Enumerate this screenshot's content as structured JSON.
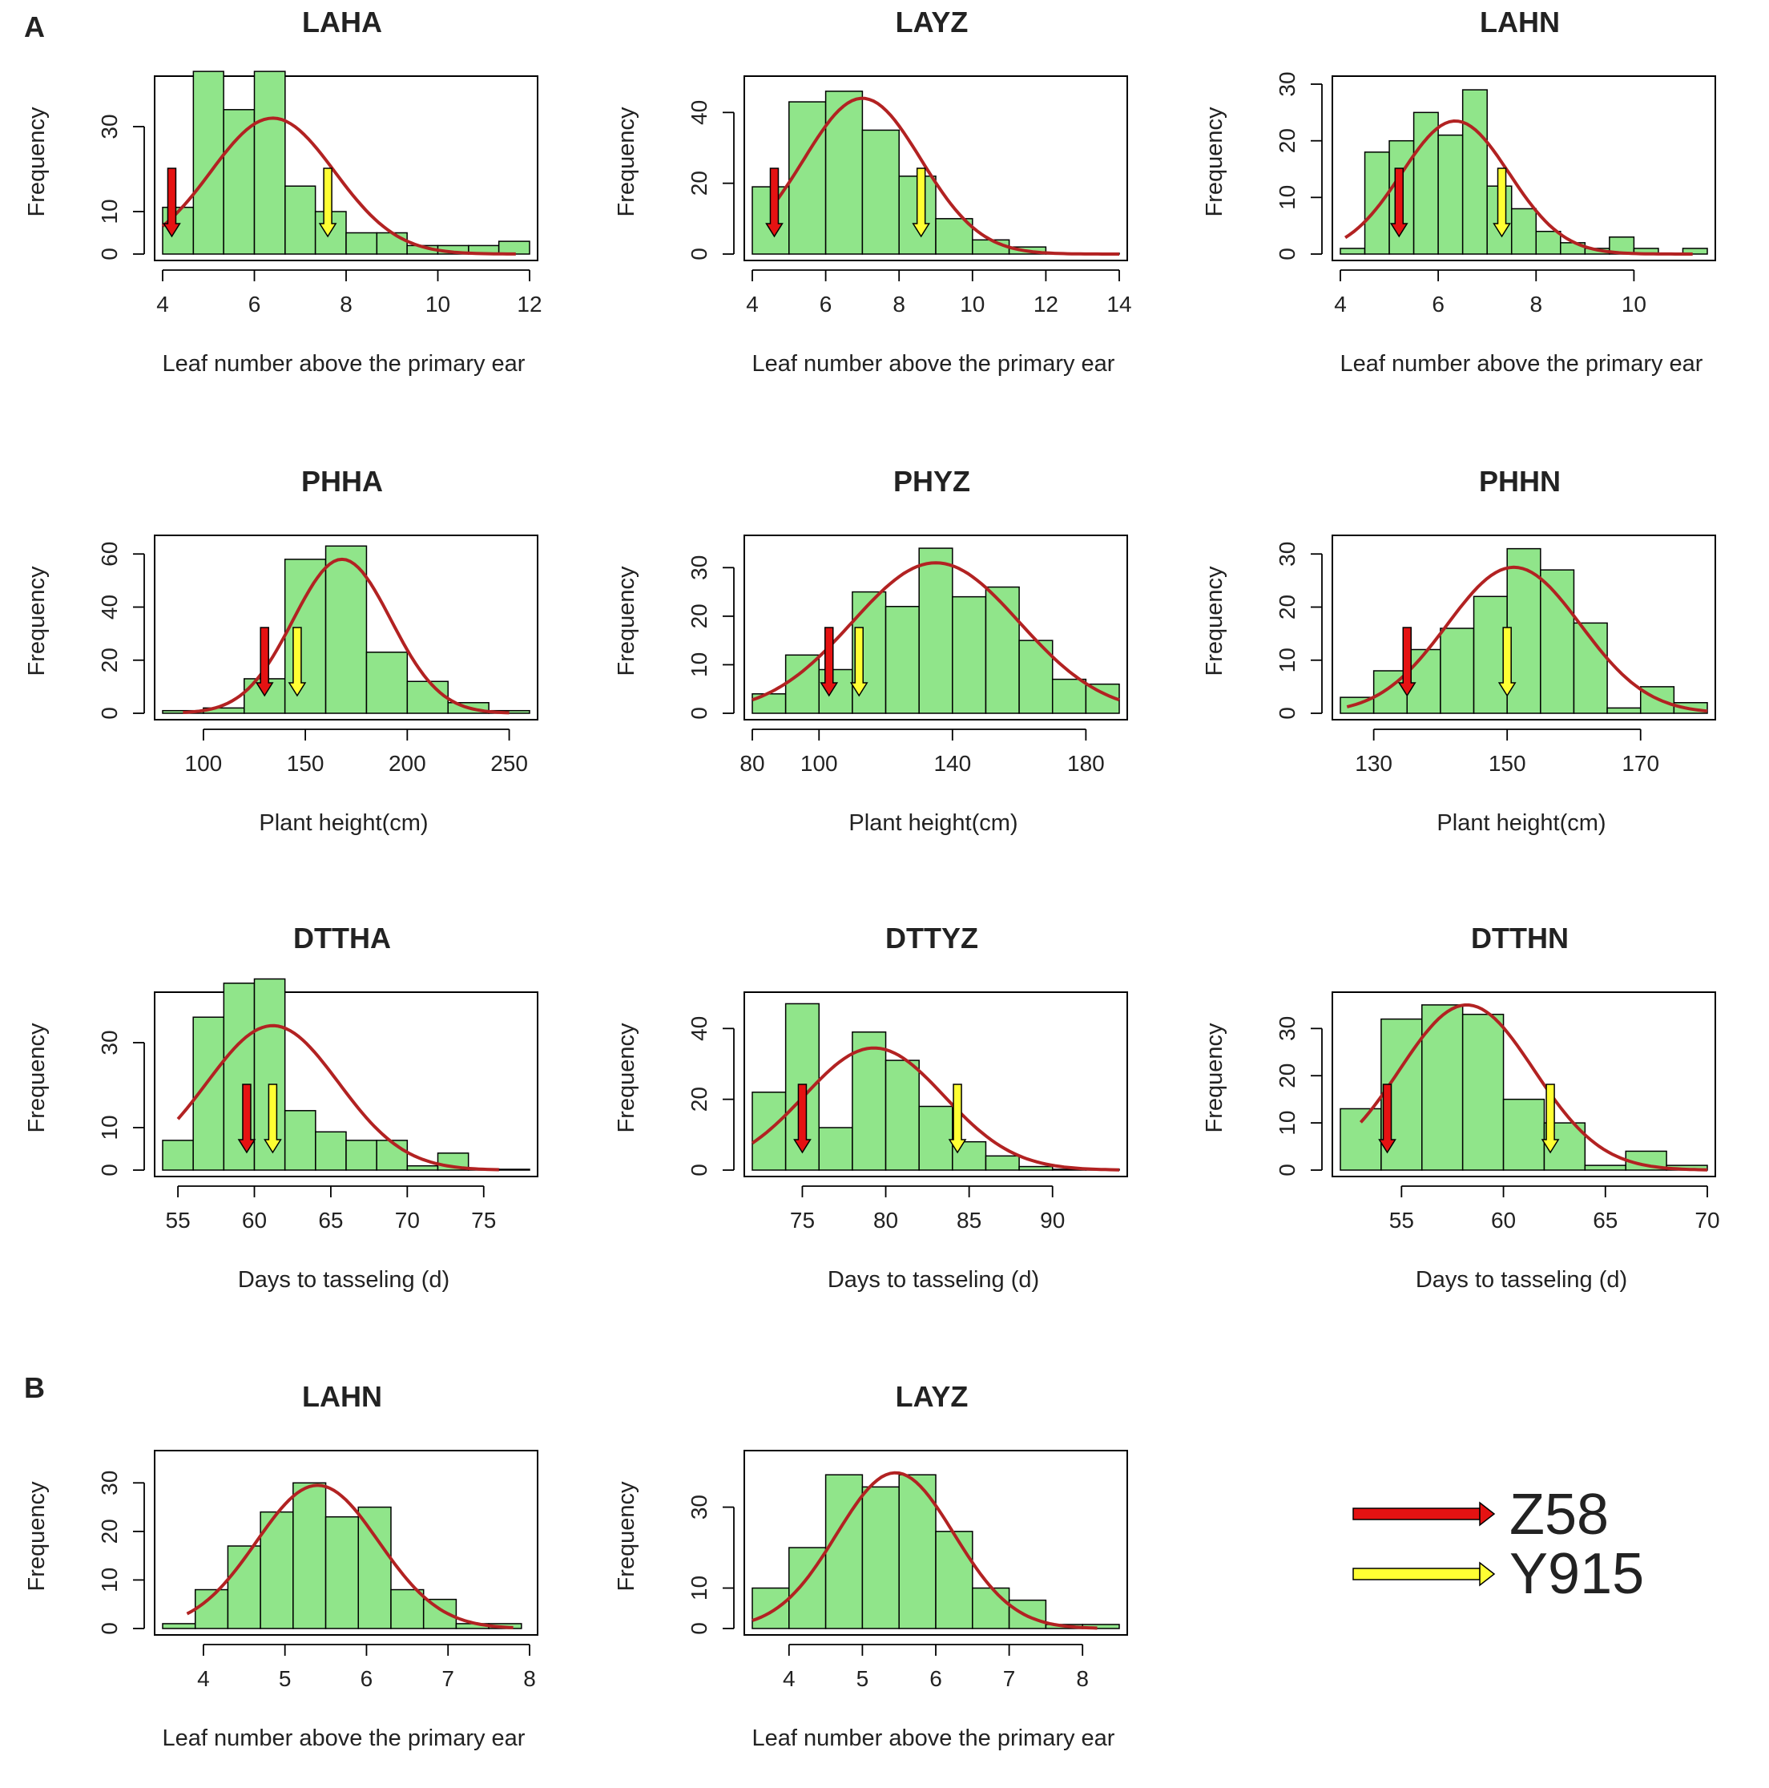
{
  "figure": {
    "panel_labels": [
      "A",
      "B"
    ],
    "y_axis_label": "Frequency",
    "legend": [
      {
        "label": "Z58",
        "color": "#e51212"
      },
      {
        "label": "Y915",
        "color": "#ffff33"
      }
    ],
    "colors": {
      "bar": "#90e58a",
      "bar_border": "#000000",
      "curve": "#b22222"
    }
  },
  "chart_data": [
    {
      "type": "bar",
      "title": "LAHA",
      "xlabel": "Leaf number above the primary ear",
      "ylabel": "Frequency",
      "xlim": [
        4,
        12
      ],
      "ylim": [
        0,
        40
      ],
      "xticks": [
        4,
        6,
        8,
        10,
        12
      ],
      "yticks": [
        0,
        10,
        30
      ],
      "bins": [
        [
          4,
          4.67,
          11
        ],
        [
          4.67,
          5.33,
          43
        ],
        [
          5.33,
          6,
          34
        ],
        [
          6,
          6.67,
          43
        ],
        [
          6.67,
          7.33,
          16
        ],
        [
          7.33,
          8,
          10
        ],
        [
          8,
          8.67,
          5
        ],
        [
          8.67,
          9.33,
          5
        ],
        [
          9.33,
          10,
          2
        ],
        [
          10,
          10.67,
          2
        ],
        [
          10.67,
          11.33,
          2
        ],
        [
          11.33,
          12,
          3
        ]
      ],
      "curve": {
        "mean": 6.4,
        "sd": 1.35,
        "peak": 32,
        "from": 4,
        "to": 11.7
      },
      "markers": {
        "Z58": 4.2,
        "Y915": 7.6
      }
    },
    {
      "type": "bar",
      "title": "LAYZ",
      "xlabel": "Leaf number above the primary ear",
      "ylabel": "Frequency",
      "xlim": [
        4,
        14
      ],
      "ylim": [
        0,
        48
      ],
      "xticks": [
        4,
        6,
        8,
        10,
        12,
        14
      ],
      "yticks": [
        0,
        20,
        40
      ],
      "bins": [
        [
          4,
          5,
          19
        ],
        [
          5,
          6,
          43
        ],
        [
          6,
          7,
          46
        ],
        [
          7,
          8,
          35
        ],
        [
          8,
          9,
          22
        ],
        [
          9,
          10,
          10
        ],
        [
          10,
          11,
          4
        ],
        [
          11,
          12,
          2
        ],
        [
          12,
          13,
          0
        ],
        [
          13,
          14,
          0
        ]
      ],
      "curve": {
        "mean": 7.0,
        "sd": 1.6,
        "peak": 44,
        "from": 4.6,
        "to": 14
      },
      "markers": {
        "Z58": 4.6,
        "Y915": 8.6
      }
    },
    {
      "type": "bar",
      "title": "LAHN",
      "xlabel": "Leaf number above the primary ear",
      "ylabel": "Frequency",
      "xlim": [
        4,
        11.5
      ],
      "ylim": [
        0,
        30
      ],
      "xticks": [
        4,
        6,
        8,
        10
      ],
      "yticks": [
        0,
        10,
        20,
        30
      ],
      "bins": [
        [
          4,
          4.5,
          1
        ],
        [
          4.5,
          5,
          18
        ],
        [
          5,
          5.5,
          20
        ],
        [
          5.5,
          6,
          25
        ],
        [
          6,
          6.5,
          21
        ],
        [
          6.5,
          7,
          29
        ],
        [
          7,
          7.5,
          12
        ],
        [
          7.5,
          8,
          8
        ],
        [
          8,
          8.5,
          4
        ],
        [
          8.5,
          9,
          2
        ],
        [
          9,
          9.5,
          1
        ],
        [
          9.5,
          10,
          3
        ],
        [
          10,
          10.5,
          1
        ],
        [
          10.5,
          11,
          0
        ],
        [
          11,
          11.5,
          1
        ]
      ],
      "curve": {
        "mean": 6.35,
        "sd": 1.1,
        "peak": 23.5,
        "from": 4.1,
        "to": 11.2
      },
      "markers": {
        "Z58": 5.2,
        "Y915": 7.3
      }
    },
    {
      "type": "bar",
      "title": "PHHA",
      "xlabel": "Plant height(cm)",
      "ylabel": "Frequency",
      "xlim": [
        80,
        260
      ],
      "ylim": [
        0,
        64
      ],
      "xticks": [
        100,
        150,
        200,
        250
      ],
      "yticks": [
        0,
        20,
        40,
        60
      ],
      "bins": [
        [
          80,
          100,
          1
        ],
        [
          100,
          120,
          2
        ],
        [
          120,
          140,
          13
        ],
        [
          140,
          160,
          58
        ],
        [
          160,
          180,
          63
        ],
        [
          180,
          200,
          23
        ],
        [
          200,
          220,
          12
        ],
        [
          220,
          240,
          4
        ],
        [
          240,
          260,
          1
        ]
      ],
      "curve": {
        "mean": 168,
        "sd": 24,
        "peak": 58,
        "from": 90,
        "to": 250
      },
      "markers": {
        "Z58": 130,
        "Y915": 146
      }
    },
    {
      "type": "bar",
      "title": "PHYZ",
      "xlabel": "Plant height(cm)",
      "ylabel": "Frequency",
      "xlim": [
        80,
        190
      ],
      "ylim": [
        0,
        35
      ],
      "xticks": [
        80,
        100,
        140,
        180
      ],
      "yticks": [
        0,
        10,
        20,
        30
      ],
      "bins": [
        [
          80,
          90,
          4
        ],
        [
          90,
          100,
          12
        ],
        [
          100,
          110,
          9
        ],
        [
          110,
          120,
          25
        ],
        [
          120,
          130,
          22
        ],
        [
          130,
          140,
          34
        ],
        [
          140,
          150,
          24
        ],
        [
          150,
          160,
          26
        ],
        [
          160,
          170,
          15
        ],
        [
          170,
          180,
          7
        ],
        [
          180,
          190,
          6
        ]
      ],
      "curve": {
        "mean": 135,
        "sd": 25,
        "peak": 31,
        "from": 80,
        "to": 190
      },
      "markers": {
        "Z58": 103,
        "Y915": 112
      }
    },
    {
      "type": "bar",
      "title": "PHHN",
      "xlabel": "Plant height(cm)",
      "ylabel": "Frequency",
      "xlim": [
        125,
        180
      ],
      "ylim": [
        0,
        32
      ],
      "xticks": [
        130,
        150,
        170
      ],
      "yticks": [
        0,
        10,
        20,
        30
      ],
      "bins": [
        [
          125,
          130,
          3
        ],
        [
          130,
          135,
          8
        ],
        [
          135,
          140,
          12
        ],
        [
          140,
          145,
          16
        ],
        [
          145,
          150,
          22
        ],
        [
          150,
          155,
          31
        ],
        [
          155,
          160,
          27
        ],
        [
          160,
          165,
          17
        ],
        [
          165,
          170,
          1
        ],
        [
          170,
          175,
          5
        ],
        [
          175,
          180,
          2
        ]
      ],
      "curve": {
        "mean": 151,
        "sd": 10,
        "peak": 27.5,
        "from": 126,
        "to": 180
      },
      "markers": {
        "Z58": 135,
        "Y915": 150
      }
    },
    {
      "type": "bar",
      "title": "DTTHA",
      "xlabel": "Days to tasseling (d)",
      "ylabel": "Frequency",
      "xlim": [
        54,
        78
      ],
      "ylim": [
        0,
        40
      ],
      "xticks": [
        55,
        60,
        65,
        70,
        75
      ],
      "yticks": [
        0,
        10,
        30
      ],
      "bins": [
        [
          54,
          56,
          7
        ],
        [
          56,
          58,
          36
        ],
        [
          58,
          60,
          44
        ],
        [
          60,
          62,
          45
        ],
        [
          62,
          64,
          14
        ],
        [
          64,
          66,
          9
        ],
        [
          66,
          68,
          7
        ],
        [
          68,
          70,
          7
        ],
        [
          70,
          72,
          1
        ],
        [
          72,
          74,
          4
        ],
        [
          74,
          76,
          0
        ],
        [
          76,
          78,
          0
        ]
      ],
      "curve": {
        "mean": 61.2,
        "sd": 4.3,
        "peak": 34,
        "from": 55,
        "to": 76
      },
      "markers": {
        "Z58": 59.5,
        "Y915": 61.2
      }
    },
    {
      "type": "bar",
      "title": "DTTYZ",
      "xlabel": "Days to tasseling (d)",
      "ylabel": "Frequency",
      "xlim": [
        72,
        94
      ],
      "ylim": [
        0,
        48
      ],
      "xticks": [
        75,
        80,
        85,
        90
      ],
      "yticks": [
        0,
        20,
        40
      ],
      "bins": [
        [
          72,
          74,
          22
        ],
        [
          74,
          76,
          47
        ],
        [
          76,
          78,
          12
        ],
        [
          78,
          80,
          39
        ],
        [
          80,
          82,
          31
        ],
        [
          82,
          84,
          18
        ],
        [
          84,
          86,
          8
        ],
        [
          86,
          88,
          4
        ],
        [
          88,
          90,
          1
        ],
        [
          90,
          92,
          0
        ],
        [
          92,
          94,
          0
        ]
      ],
      "curve": {
        "mean": 79.3,
        "sd": 4.2,
        "peak": 34.5,
        "from": 72,
        "to": 94
      },
      "markers": {
        "Z58": 75,
        "Y915": 84.3
      }
    },
    {
      "type": "bar",
      "title": "DTTHN",
      "xlabel": "Days to tasseling (d)",
      "ylabel": "Frequency",
      "xlim": [
        52,
        70
      ],
      "ylim": [
        0,
        36
      ],
      "xticks": [
        55,
        60,
        65,
        70
      ],
      "yticks": [
        0,
        10,
        20,
        30
      ],
      "bins": [
        [
          52,
          54,
          13
        ],
        [
          54,
          56,
          32
        ],
        [
          56,
          58,
          35
        ],
        [
          58,
          60,
          33
        ],
        [
          60,
          62,
          15
        ],
        [
          62,
          64,
          10
        ],
        [
          64,
          66,
          1
        ],
        [
          66,
          68,
          4
        ],
        [
          68,
          70,
          1
        ]
      ],
      "curve": {
        "mean": 58.2,
        "sd": 3.3,
        "peak": 35,
        "from": 53,
        "to": 70
      },
      "markers": {
        "Z58": 54.3,
        "Y915": 62.3
      }
    },
    {
      "type": "bar",
      "title": "LAHN",
      "xlabel": "Leaf number above the primary ear",
      "ylabel": "Frequency",
      "xlim": [
        3.5,
        8
      ],
      "ylim": [
        0,
        35
      ],
      "xticks": [
        4,
        5,
        6,
        7,
        8
      ],
      "yticks": [
        0,
        10,
        20,
        30
      ],
      "bins": [
        [
          3.5,
          3.9,
          1
        ],
        [
          3.9,
          4.3,
          8
        ],
        [
          4.3,
          4.7,
          17
        ],
        [
          4.7,
          5.1,
          24
        ],
        [
          5.1,
          5.5,
          30
        ],
        [
          5.5,
          5.9,
          23
        ],
        [
          5.9,
          6.3,
          25
        ],
        [
          6.3,
          6.7,
          8
        ],
        [
          6.7,
          7.1,
          6
        ],
        [
          7.1,
          7.5,
          1
        ],
        [
          7.5,
          7.9,
          1
        ]
      ],
      "curve": {
        "mean": 5.4,
        "sd": 0.75,
        "peak": 29.5,
        "from": 3.8,
        "to": 7.8
      },
      "markers": null
    },
    {
      "type": "bar",
      "title": "LAYZ",
      "xlabel": "Leaf number above the primary ear",
      "ylabel": "Frequency",
      "xlim": [
        3.5,
        8.5
      ],
      "ylim": [
        0,
        42
      ],
      "xticks": [
        4,
        5,
        6,
        7,
        8
      ],
      "yticks": [
        0,
        10,
        30
      ],
      "bins": [
        [
          3.5,
          4,
          10
        ],
        [
          4,
          4.5,
          20
        ],
        [
          4.5,
          5,
          38
        ],
        [
          5,
          5.5,
          35
        ],
        [
          5.5,
          6,
          38
        ],
        [
          6,
          6.5,
          24
        ],
        [
          6.5,
          7,
          10
        ],
        [
          7,
          7.5,
          7
        ],
        [
          7.5,
          8,
          1
        ],
        [
          8,
          8.5,
          1
        ]
      ],
      "curve": {
        "mean": 5.45,
        "sd": 0.8,
        "peak": 38.5,
        "from": 3.5,
        "to": 8.2
      },
      "markers": null
    }
  ]
}
